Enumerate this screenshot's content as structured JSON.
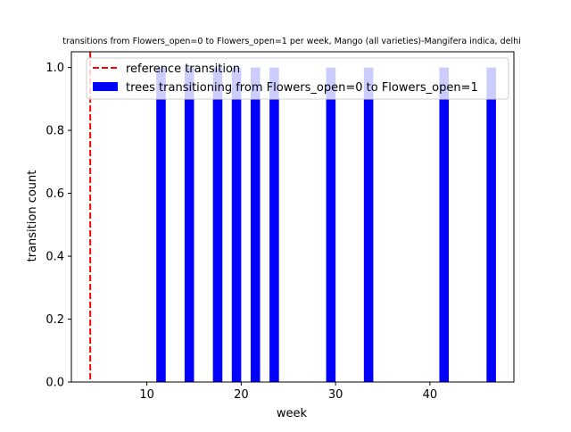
{
  "chart_data": {
    "type": "bar",
    "title": "transitions from Flowers_open=0 to Flowers_open=1 per week, Mango (all varieties)-Mangifera indica, delhi",
    "xlabel": "week",
    "ylabel": "transition count",
    "xlim": [
      2,
      48.9
    ],
    "ylim": [
      0,
      1.05
    ],
    "xticks": [
      10,
      20,
      30,
      40
    ],
    "yticks": [
      0.0,
      0.2,
      0.4,
      0.6,
      0.8,
      1.0
    ],
    "xtick_labels": [
      "10",
      "20",
      "30",
      "40"
    ],
    "ytick_labels": [
      "0.0",
      "0.2",
      "0.4",
      "0.6",
      "0.8",
      "1.0"
    ],
    "bar_width_weeks": 1,
    "series": [
      {
        "name": "trees transitioning from Flowers_open=0 to Flowers_open=1",
        "color": "#0000ff",
        "x": [
          11.5,
          14.5,
          17.5,
          19.5,
          21.5,
          23.5,
          29.5,
          33.5,
          41.5,
          46.5
        ],
        "values": [
          1,
          1,
          1,
          1,
          1,
          1,
          1,
          1,
          1,
          1
        ]
      }
    ],
    "reference_lines": [
      {
        "name": "reference transition",
        "x": 4,
        "color": "#ff0000",
        "style": "dashed"
      }
    ],
    "legend": {
      "placement": "top-right",
      "entries": [
        "reference transition",
        "trees transitioning from Flowers_open=0 to Flowers_open=1"
      ]
    },
    "grid": false
  }
}
